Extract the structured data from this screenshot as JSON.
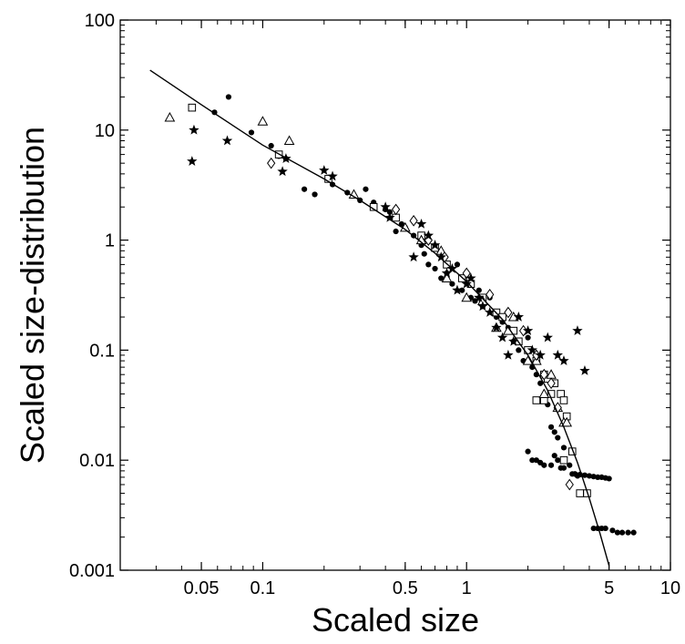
{
  "chart_data": {
    "type": "scatter",
    "xlabel": "Scaled size",
    "ylabel": "Scaled size-distribution",
    "xscale": "log",
    "yscale": "log",
    "xlim": [
      0.02,
      10
    ],
    "ylim": [
      0.001,
      100
    ],
    "grid": false,
    "legend": "none",
    "xticks": [
      {
        "value": 0.05,
        "label": "0.05"
      },
      {
        "value": 0.1,
        "label": "0.1"
      },
      {
        "value": 0.5,
        "label": "0.5"
      },
      {
        "value": 1,
        "label": "1"
      },
      {
        "value": 5,
        "label": "5"
      },
      {
        "value": 10,
        "label": "10"
      }
    ],
    "yticks": [
      {
        "value": 0.001,
        "label": "0.001"
      },
      {
        "value": 0.01,
        "label": "0.01"
      },
      {
        "value": 0.1,
        "label": "0.1"
      },
      {
        "value": 1,
        "label": "1"
      },
      {
        "value": 10,
        "label": "10"
      },
      {
        "value": 100,
        "label": "100"
      }
    ],
    "fit_line": {
      "x": [
        0.028,
        0.05,
        0.1,
        0.2,
        0.3,
        0.5,
        0.7,
        1.0,
        1.5,
        2.0,
        2.5,
        3.0,
        3.5,
        4.0,
        4.5,
        5.0
      ],
      "y": [
        35,
        17,
        7.3,
        3.6,
        2.3,
        1.25,
        0.76,
        0.42,
        0.19,
        0.09,
        0.043,
        0.02,
        0.0095,
        0.0045,
        0.0022,
        0.0011
      ]
    },
    "series": [
      {
        "marker": "filled-circle",
        "x": [
          0.058,
          0.068,
          0.088,
          0.11,
          0.12,
          0.13,
          0.16,
          0.18,
          0.22,
          0.26,
          0.3,
          0.32,
          0.35,
          0.4,
          0.42,
          0.45,
          0.48,
          0.5,
          0.55,
          0.6,
          0.62,
          0.65,
          0.7,
          0.75,
          0.8,
          0.85,
          0.9,
          0.95,
          1.0,
          1.05,
          1.1,
          1.15,
          1.2,
          1.3,
          1.4,
          1.5,
          1.6,
          1.7,
          1.8,
          1.9,
          2.0,
          2.1,
          2.2,
          2.3,
          2.4,
          2.5,
          2.6,
          2.7,
          2.8,
          3.0,
          3.2,
          3.4,
          3.5,
          2.0,
          2.1,
          2.2,
          2.3,
          2.4,
          2.6,
          2.7,
          2.8,
          2.9,
          3.0,
          3.3,
          3.4,
          3.6,
          3.8,
          4.0,
          4.2,
          4.4,
          4.6,
          4.8,
          5.0,
          4.2,
          4.4,
          4.6,
          4.8,
          5.2,
          5.5,
          5.8,
          6.2,
          6.6
        ],
        "y": [
          14.5,
          20,
          9.5,
          7.2,
          5.8,
          5.5,
          2.9,
          2.6,
          3.2,
          2.7,
          2.3,
          2.9,
          2.2,
          1.9,
          1.8,
          1.2,
          1.4,
          1.3,
          1.1,
          0.9,
          0.75,
          0.6,
          0.55,
          0.45,
          0.5,
          0.4,
          0.6,
          0.35,
          0.5,
          0.3,
          0.28,
          0.35,
          0.25,
          0.3,
          0.2,
          0.18,
          0.16,
          0.12,
          0.1,
          0.08,
          0.13,
          0.07,
          0.06,
          0.05,
          0.035,
          0.032,
          0.02,
          0.018,
          0.016,
          0.013,
          0.009,
          0.0075,
          0.0072,
          0.012,
          0.01,
          0.01,
          0.0095,
          0.009,
          0.009,
          0.011,
          0.01,
          0.0085,
          0.0085,
          0.0075,
          0.0075,
          0.0074,
          0.0073,
          0.0072,
          0.0071,
          0.007,
          0.007,
          0.0069,
          0.0068,
          0.0024,
          0.0024,
          0.0024,
          0.0024,
          0.0023,
          0.0022,
          0.0022,
          0.0022,
          0.0022
        ]
      },
      {
        "marker": "open-square",
        "x": [
          0.045,
          0.12,
          0.21,
          0.35,
          0.45,
          0.6,
          0.7,
          0.8,
          0.95,
          1.05,
          1.2,
          1.4,
          1.5,
          1.7,
          1.8,
          2.0,
          2.2,
          2.4,
          2.5,
          2.7,
          2.9,
          3.0,
          3.1,
          2.2,
          2.4,
          2.6,
          3.0,
          3.3,
          3.6,
          3.9
        ],
        "y": [
          16,
          6,
          3.6,
          2.0,
          1.6,
          1.1,
          0.85,
          0.6,
          0.45,
          0.4,
          0.3,
          0.22,
          0.2,
          0.15,
          0.12,
          0.1,
          0.08,
          0.06,
          0.055,
          0.05,
          0.04,
          0.035,
          0.025,
          0.035,
          0.035,
          0.04,
          0.01,
          0.012,
          0.005,
          0.005
        ]
      },
      {
        "marker": "open-triangle",
        "x": [
          0.035,
          0.1,
          0.135,
          0.28,
          0.5,
          0.6,
          0.75,
          0.8,
          1.0,
          1.2,
          1.4,
          1.6,
          1.7,
          2.0,
          2.2,
          2.4,
          2.6,
          2.8,
          3.0,
          3.1
        ],
        "y": [
          13,
          12,
          8,
          2.6,
          1.3,
          1.0,
          0.8,
          0.45,
          0.3,
          0.28,
          0.16,
          0.15,
          0.2,
          0.08,
          0.08,
          0.04,
          0.06,
          0.03,
          0.022,
          0.022
        ]
      },
      {
        "marker": "open-diamond",
        "x": [
          0.11,
          0.45,
          0.55,
          0.65,
          0.78,
          1.0,
          1.3,
          1.6,
          1.9,
          2.2,
          2.4,
          2.6,
          2.8,
          3.2
        ],
        "y": [
          5,
          1.9,
          1.5,
          1.0,
          0.7,
          0.5,
          0.32,
          0.22,
          0.15,
          0.09,
          0.06,
          0.05,
          0.03,
          0.006
        ]
      },
      {
        "marker": "filled-star",
        "x": [
          0.045,
          0.046,
          0.067,
          0.125,
          0.13,
          0.2,
          0.22,
          0.4,
          0.42,
          0.55,
          0.6,
          0.65,
          0.7,
          0.75,
          0.8,
          0.85,
          0.9,
          1.0,
          1.05,
          1.15,
          1.2,
          1.3,
          1.4,
          1.5,
          1.6,
          1.7,
          1.8,
          2.0,
          2.1,
          2.3,
          2.5,
          2.8,
          3.0,
          3.5,
          3.8
        ],
        "y": [
          5.2,
          10,
          8,
          4.2,
          5.5,
          4.3,
          3.8,
          2.0,
          1.6,
          0.7,
          1.4,
          1.1,
          0.9,
          0.7,
          0.5,
          0.55,
          0.35,
          0.4,
          0.45,
          0.3,
          0.25,
          0.22,
          0.16,
          0.13,
          0.09,
          0.12,
          0.2,
          0.15,
          0.1,
          0.09,
          0.13,
          0.09,
          0.08,
          0.15,
          0.065
        ]
      }
    ]
  }
}
